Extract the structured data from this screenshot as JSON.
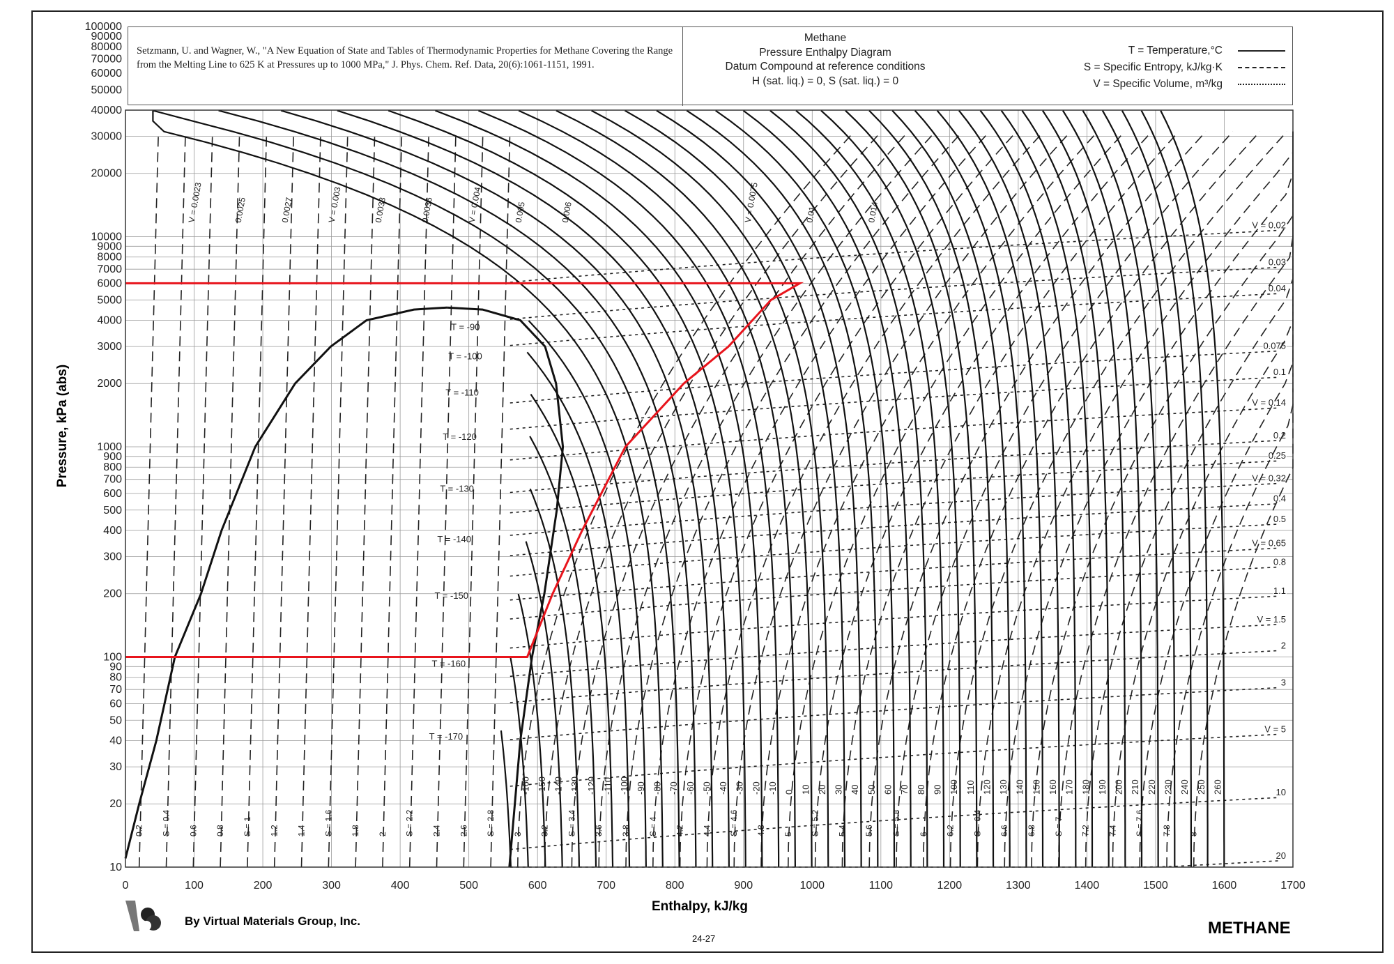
{
  "header": {
    "reference": "Setzmann, U. and Wagner, W., \"A New Equation of State and Tables of Thermodynamic Properties for Methane Covering the Range from the Melting Line to 625 K at Pressures up to 1000 MPa,\" J. Phys. Chem. Ref. Data, 20(6):1061-1151, 1991.",
    "title_lines": [
      "Methane",
      "Pressure Enthalpy Diagram",
      "Datum Compound at reference conditions",
      "H (sat. liq.) = 0,  S (sat. liq.) = 0"
    ],
    "legend": [
      {
        "label": "T = Temperature,°C",
        "style": "solid"
      },
      {
        "label": "S = Specific Entropy, kJ/kg·K",
        "style": "dashed"
      },
      {
        "label": "V = Specific Volume, m³/kg",
        "style": "dotted"
      }
    ]
  },
  "footer": {
    "company": "By Virtual Materials Group, Inc.",
    "page": "24-27",
    "compound": "METHANE"
  },
  "chart_data": {
    "type": "line",
    "title": "Methane Pressure Enthalpy Diagram",
    "xlabel": "Enthalpy, kJ/kg",
    "ylabel": "Pressure, kPa (abs)",
    "xlim": [
      0,
      1700
    ],
    "ylim": [
      10,
      100000
    ],
    "yscale": "log",
    "grid": true,
    "x_ticks": [
      "0",
      "100",
      "200",
      "300",
      "400",
      "500",
      "600",
      "700",
      "800",
      "900",
      "1000",
      "1100",
      "1200",
      "1300",
      "1400",
      "1500",
      "1600",
      "1700"
    ],
    "y_ticks": [
      "10",
      "20",
      "30",
      "40",
      "50",
      "60",
      "70",
      "80",
      "90",
      "100",
      "200",
      "300",
      "400",
      "500",
      "600",
      "700",
      "800",
      "900",
      "1000",
      "2000",
      "3000",
      "4000",
      "5000",
      "6000",
      "7000",
      "8000",
      "9000",
      "10000",
      "20000",
      "30000",
      "40000",
      "50000",
      "60000",
      "70000",
      "80000",
      "90000",
      "100000"
    ],
    "saturated_liquid": [
      [
        0,
        11
      ],
      [
        20,
        20
      ],
      [
        45,
        40
      ],
      [
        72,
        100
      ],
      [
        110,
        200
      ],
      [
        140,
        400
      ],
      [
        189,
        1000
      ],
      [
        247,
        2000
      ],
      [
        299,
        3000
      ],
      [
        351,
        4000
      ],
      [
        420,
        4500
      ],
      [
        468,
        4600
      ]
    ],
    "saturated_vapor": [
      [
        468,
        4600
      ],
      [
        520,
        4500
      ],
      [
        575,
        4000
      ],
      [
        611,
        3000
      ],
      [
        627,
        2000
      ],
      [
        637,
        1000
      ],
      [
        628,
        500
      ],
      [
        610,
        200
      ],
      [
        592,
        100
      ],
      [
        575,
        40
      ],
      [
        559,
        10
      ]
    ],
    "cycle": {
      "color": "#e8141c",
      "points": [
        [
          0,
          6000
        ],
        [
          982,
          6000
        ],
        [
          940,
          5000
        ],
        [
          878,
          3000
        ],
        [
          813,
          2000
        ],
        [
          728,
          1000
        ],
        [
          665,
          400
        ],
        [
          622,
          200
        ],
        [
          585,
          100
        ],
        [
          0,
          100
        ]
      ]
    },
    "isotherms_C": [
      -170,
      -160,
      -150,
      -140,
      -130,
      -120,
      -110,
      -100,
      -90,
      -80,
      -70,
      -60,
      -50,
      -40,
      -30,
      -20,
      -10,
      0,
      10,
      20,
      30,
      40,
      50,
      60,
      70,
      80,
      90,
      100,
      110,
      120,
      130,
      140,
      150,
      160,
      170,
      180,
      190,
      200,
      210,
      220,
      230,
      240,
      250,
      260
    ],
    "isotherm_labels_dome": [
      "T = -90",
      "T = -100",
      "T = -110",
      "T = -120",
      "T = -130",
      "T = -140",
      "T = -150",
      "T = -160",
      "T = -170"
    ],
    "entropy_labels": [
      "0.2",
      "S = 0.4",
      "0.6",
      "0.8",
      "S = 1",
      "1.2",
      "1.4",
      "S = 1.6",
      "1.8",
      "2",
      "S = 2.2",
      "2.4",
      "2.6",
      "S = 2.8",
      "3",
      "3.2",
      "S = 3.4",
      "3.6",
      "3.8",
      "S = 4",
      "4.2",
      "4.4",
      "S = 4.6",
      "4.8",
      "5",
      "S = 5.2",
      "5.4",
      "5.6",
      "S = 5.8",
      "6",
      "6.2",
      "S = 6.4",
      "6.6",
      "6.8",
      "S = 7",
      "7.2",
      "7.4",
      "S = 7.6",
      "7.8",
      "8"
    ],
    "volume_labels_right": [
      "V = 0.02",
      "0.03",
      "0.04",
      "0.075",
      "0.1",
      "V = 0.14",
      "0.2",
      "0.25",
      "V = 0.32",
      "0.4",
      "0.5",
      "V = 0.65",
      "0.8",
      "1.1",
      "V = 1.5",
      "2",
      "3",
      "V = 5",
      "10",
      "20"
    ],
    "volume_values_right": [
      0.02,
      0.03,
      0.04,
      0.075,
      0.1,
      0.14,
      0.2,
      0.25,
      0.32,
      0.4,
      0.5,
      0.65,
      0.8,
      1.1,
      1.5,
      2,
      3,
      5,
      10,
      20
    ],
    "volume_labels_top": [
      "V = 0.0023",
      "0.0025",
      "0.0027",
      "V = 0.003",
      "0.0033",
      "0.0036",
      "V = 0.004",
      "0.005",
      "0.006",
      "V = 0.0075",
      "0.01",
      "0.014"
    ]
  }
}
